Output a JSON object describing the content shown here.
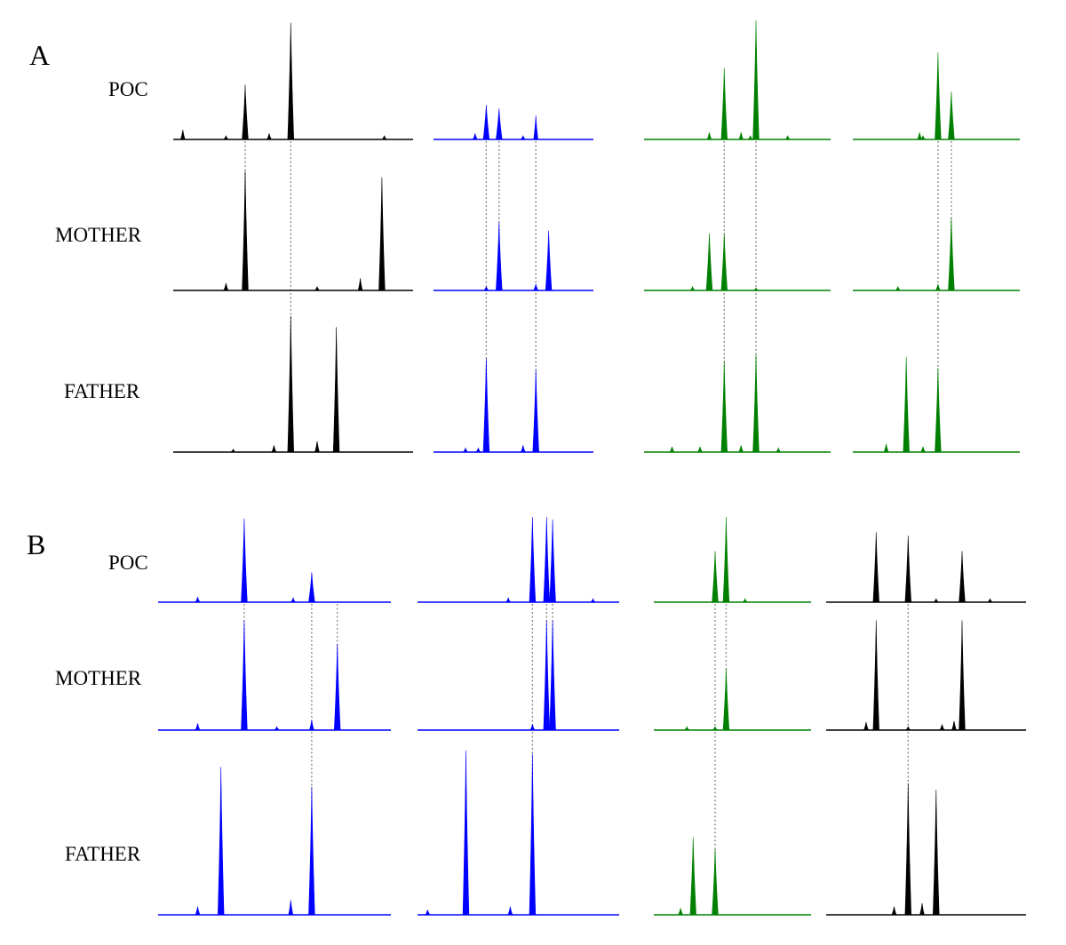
{
  "panels": [
    {
      "letter": "A",
      "row_labels": [
        "POC",
        "MOTHER",
        "FATHER"
      ],
      "columns": [
        {
          "color": "#000000",
          "traces": [
            [
              {
                "x": 0.04,
                "h": 0.08
              },
              {
                "x": 0.22,
                "h": 0.03
              },
              {
                "x": 0.3,
                "h": 0.46
              },
              {
                "x": 0.4,
                "h": 0.05
              },
              {
                "x": 0.49,
                "h": 0.98
              },
              {
                "x": 0.88,
                "h": 0.03
              }
            ],
            [
              {
                "x": 0.22,
                "h": 0.06
              },
              {
                "x": 0.3,
                "h": 0.98
              },
              {
                "x": 0.6,
                "h": 0.03
              },
              {
                "x": 0.78,
                "h": 0.1
              },
              {
                "x": 0.87,
                "h": 0.93
              }
            ],
            [
              {
                "x": 0.25,
                "h": 0.02
              },
              {
                "x": 0.42,
                "h": 0.05
              },
              {
                "x": 0.49,
                "h": 1.0
              },
              {
                "x": 0.6,
                "h": 0.08
              },
              {
                "x": 0.68,
                "h": 0.92
              }
            ]
          ],
          "links": [
            {
              "x": 0.3,
              "from": 0,
              "to": 1
            },
            {
              "x": 0.49,
              "from": 0,
              "to": 2
            }
          ]
        },
        {
          "color": "#0000ff",
          "traces": [
            [
              {
                "x": 0.26,
                "h": 0.05
              },
              {
                "x": 0.33,
                "h": 0.29
              },
              {
                "x": 0.41,
                "h": 0.26
              },
              {
                "x": 0.56,
                "h": 0.03
              },
              {
                "x": 0.64,
                "h": 0.2
              }
            ],
            [
              {
                "x": 0.33,
                "h": 0.03
              },
              {
                "x": 0.41,
                "h": 0.56
              },
              {
                "x": 0.64,
                "h": 0.05
              },
              {
                "x": 0.72,
                "h": 0.49
              }
            ],
            [
              {
                "x": 0.2,
                "h": 0.03
              },
              {
                "x": 0.28,
                "h": 0.03
              },
              {
                "x": 0.33,
                "h": 0.69
              },
              {
                "x": 0.56,
                "h": 0.05
              },
              {
                "x": 0.64,
                "h": 0.61
              }
            ]
          ],
          "links": [
            {
              "x": 0.33,
              "from": 0,
              "to": 2
            },
            {
              "x": 0.41,
              "from": 0,
              "to": 1
            },
            {
              "x": 0.64,
              "from": 0,
              "to": 2
            }
          ]
        },
        {
          "color": "#008000",
          "traces": [
            [
              {
                "x": 0.35,
                "h": 0.06
              },
              {
                "x": 0.43,
                "h": 0.6
              },
              {
                "x": 0.52,
                "h": 0.06
              },
              {
                "x": 0.57,
                "h": 0.03
              },
              {
                "x": 0.6,
                "h": 1.0
              },
              {
                "x": 0.77,
                "h": 0.03
              }
            ],
            [
              {
                "x": 0.26,
                "h": 0.03
              },
              {
                "x": 0.35,
                "h": 0.47
              },
              {
                "x": 0.43,
                "h": 0.47
              },
              {
                "x": 0.6,
                "h": 0.02
              }
            ],
            [
              {
                "x": 0.15,
                "h": 0.04
              },
              {
                "x": 0.3,
                "h": 0.04
              },
              {
                "x": 0.43,
                "h": 0.67
              },
              {
                "x": 0.52,
                "h": 0.05
              },
              {
                "x": 0.6,
                "h": 0.72
              },
              {
                "x": 0.72,
                "h": 0.03
              }
            ]
          ],
          "links": [
            {
              "x": 0.43,
              "from": 0,
              "to": 2
            },
            {
              "x": 0.6,
              "from": 0,
              "to": 2
            }
          ]
        },
        {
          "color": "#008000",
          "traces": [
            [
              {
                "x": 0.42,
                "h": 0.03
              },
              {
                "x": 0.4,
                "h": 0.06
              },
              {
                "x": 0.51,
                "h": 0.73
              },
              {
                "x": 0.59,
                "h": 0.4
              }
            ],
            [
              {
                "x": 0.27,
                "h": 0.03
              },
              {
                "x": 0.51,
                "h": 0.05
              },
              {
                "x": 0.59,
                "h": 0.6
              }
            ],
            [
              {
                "x": 0.2,
                "h": 0.06
              },
              {
                "x": 0.32,
                "h": 0.7
              },
              {
                "x": 0.42,
                "h": 0.04
              },
              {
                "x": 0.51,
                "h": 0.62
              }
            ]
          ],
          "links": [
            {
              "x": 0.51,
              "from": 0,
              "to": 2
            },
            {
              "x": 0.59,
              "from": 0,
              "to": 1
            }
          ]
        }
      ]
    },
    {
      "letter": "B",
      "row_labels": [
        "POC",
        "MOTHER",
        "FATHER"
      ],
      "columns": [
        {
          "color": "#0000ff",
          "traces": [
            [
              {
                "x": 0.17,
                "h": 0.06
              },
              {
                "x": 0.37,
                "h": 0.98
              },
              {
                "x": 0.58,
                "h": 0.05
              },
              {
                "x": 0.66,
                "h": 0.35
              }
            ],
            [
              {
                "x": 0.17,
                "h": 0.06
              },
              {
                "x": 0.37,
                "h": 0.98
              },
              {
                "x": 0.51,
                "h": 0.03
              },
              {
                "x": 0.66,
                "h": 0.09
              },
              {
                "x": 0.77,
                "h": 0.77
              }
            ],
            [
              {
                "x": 0.17,
                "h": 0.05
              },
              {
                "x": 0.27,
                "h": 0.9
              },
              {
                "x": 0.57,
                "h": 0.09
              },
              {
                "x": 0.66,
                "h": 0.78
              }
            ]
          ],
          "links": [
            {
              "x": 0.37,
              "from": 0,
              "to": 1
            },
            {
              "x": 0.66,
              "from": 0,
              "to": 2
            },
            {
              "x": 0.77,
              "from": 0,
              "to": 1
            }
          ]
        },
        {
          "color": "#0000ff",
          "traces": [
            [
              {
                "x": 0.45,
                "h": 0.05
              },
              {
                "x": 0.57,
                "h": 1.0
              },
              {
                "x": 0.64,
                "h": 1.0
              },
              {
                "x": 0.67,
                "h": 0.97
              },
              {
                "x": 0.87,
                "h": 0.04
              }
            ],
            [
              {
                "x": 0.57,
                "h": 0.05
              },
              {
                "x": 0.64,
                "h": 0.98
              },
              {
                "x": 0.67,
                "h": 0.98
              }
            ],
            [
              {
                "x": 0.05,
                "h": 0.03
              },
              {
                "x": 0.24,
                "h": 1.0
              },
              {
                "x": 0.46,
                "h": 0.05
              },
              {
                "x": 0.57,
                "h": 0.98
              }
            ]
          ],
          "links": [
            {
              "x": 0.57,
              "from": 0,
              "to": 2
            },
            {
              "x": 0.64,
              "from": 0,
              "to": 1
            },
            {
              "x": 0.67,
              "from": 0,
              "to": 1
            }
          ]
        },
        {
          "color": "#008000",
          "traces": [
            [
              {
                "x": 0.39,
                "h": 0.6
              },
              {
                "x": 0.46,
                "h": 1.0
              },
              {
                "x": 0.58,
                "h": 0.04
              }
            ],
            [
              {
                "x": 0.21,
                "h": 0.03
              },
              {
                "x": 0.39,
                "h": 0.03
              },
              {
                "x": 0.46,
                "h": 0.55
              }
            ],
            [
              {
                "x": 0.17,
                "h": 0.04
              },
              {
                "x": 0.25,
                "h": 0.47
              },
              {
                "x": 0.39,
                "h": 0.4
              }
            ]
          ],
          "links": [
            {
              "x": 0.39,
              "from": 0,
              "to": 2
            },
            {
              "x": 0.46,
              "from": 0,
              "to": 1
            }
          ]
        },
        {
          "color": "#000000",
          "traces": [
            [
              {
                "x": 0.25,
                "h": 0.82
              },
              {
                "x": 0.41,
                "h": 0.78
              },
              {
                "x": 0.55,
                "h": 0.04
              },
              {
                "x": 0.68,
                "h": 0.6
              },
              {
                "x": 0.82,
                "h": 0.04
              }
            ],
            [
              {
                "x": 0.2,
                "h": 0.07
              },
              {
                "x": 0.25,
                "h": 0.98
              },
              {
                "x": 0.41,
                "h": 0.03
              },
              {
                "x": 0.58,
                "h": 0.05
              },
              {
                "x": 0.64,
                "h": 0.08
              },
              {
                "x": 0.68,
                "h": 0.98
              }
            ],
            [
              {
                "x": 0.34,
                "h": 0.05
              },
              {
                "x": 0.41,
                "h": 0.8
              },
              {
                "x": 0.48,
                "h": 0.07
              },
              {
                "x": 0.55,
                "h": 0.76
              }
            ]
          ],
          "links": [
            {
              "x": 0.41,
              "from": 0,
              "to": 2
            }
          ]
        }
      ]
    }
  ]
}
